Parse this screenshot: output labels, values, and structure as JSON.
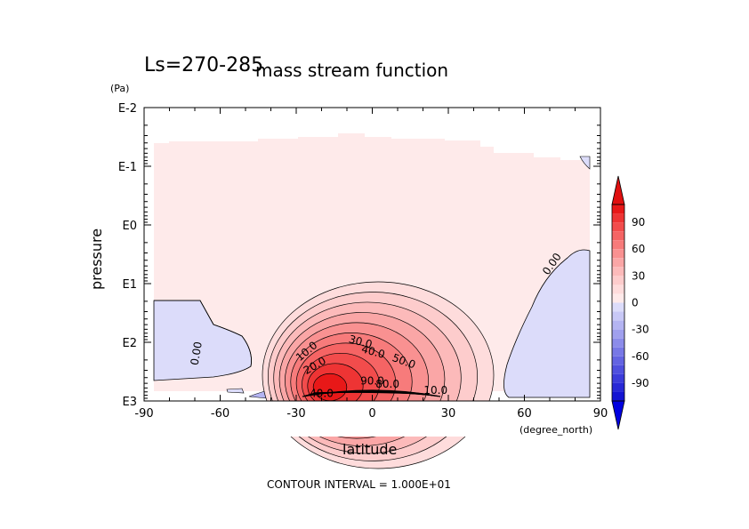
{
  "chart_data": {
    "type": "heatmap",
    "title": "mass stream function",
    "subtitle": "Ls=270-285",
    "xlabel": "latitude",
    "xunit": "(degree_north)",
    "ylabel": "pressure",
    "yunit": "(Pa)",
    "footer": "CONTOUR INTERVAL = 1.000E+01",
    "x_ticks": [
      "-90",
      "-60",
      "-30",
      "0",
      "30",
      "60",
      "90"
    ],
    "x_tick_values": [
      -90,
      -60,
      -30,
      0,
      30,
      60,
      90
    ],
    "y_ticks": [
      "E-2",
      "E-1",
      "E0",
      "E1",
      "E2",
      "E3"
    ],
    "y_tick_exponents": [
      -2,
      -1,
      0,
      1,
      2,
      3
    ],
    "xlim": [
      -90,
      90
    ],
    "ylim_log10": [
      -2,
      3
    ],
    "y_axis": "log, inverted (E3 at bottom)",
    "contour_interval": 10,
    "contour_labels": [
      {
        "text": "0.00",
        "lat": -68,
        "log10p": 2.2,
        "rotate": -80
      },
      {
        "text": "0.00",
        "lat": 72,
        "log10p": 0.7,
        "rotate": -55
      },
      {
        "text": "10.0",
        "lat": -25,
        "log10p": 2.2,
        "rotate": -40
      },
      {
        "text": "20.0",
        "lat": -22,
        "log10p": 2.45,
        "rotate": -30
      },
      {
        "text": "30.0",
        "lat": -5,
        "log10p": 2.05,
        "rotate": 15
      },
      {
        "text": "40.0",
        "lat": 0,
        "log10p": 2.22,
        "rotate": 15
      },
      {
        "text": "50.0",
        "lat": 12,
        "log10p": 2.38,
        "rotate": 20
      },
      {
        "text": "90.0",
        "lat": 0,
        "log10p": 2.72,
        "rotate": 0
      },
      {
        "text": "80.0",
        "lat": 6,
        "log10p": 2.77,
        "rotate": 0
      },
      {
        "text": "40.0",
        "lat": -20,
        "log10p": 2.93,
        "rotate": 0
      },
      {
        "text": "10.0",
        "lat": 25,
        "log10p": 2.88,
        "rotate": 0
      }
    ],
    "colorbar": {
      "ticks": [
        "90",
        "60",
        "30",
        "0",
        "-30",
        "-60",
        "-90"
      ],
      "tick_values": [
        90,
        60,
        30,
        0,
        -30,
        -60,
        -90
      ],
      "extend": "both",
      "levels": [
        {
          "from": 100,
          "to": 110,
          "color": "#e81818"
        },
        {
          "from": 90,
          "to": 100,
          "color": "#ee3434"
        },
        {
          "from": 80,
          "to": 90,
          "color": "#f24c4c"
        },
        {
          "from": 70,
          "to": 80,
          "color": "#f56464"
        },
        {
          "from": 60,
          "to": 70,
          "color": "#f77b7b"
        },
        {
          "from": 50,
          "to": 60,
          "color": "#f99191"
        },
        {
          "from": 40,
          "to": 50,
          "color": "#faa6a6"
        },
        {
          "from": 30,
          "to": 40,
          "color": "#fcbaba"
        },
        {
          "from": 20,
          "to": 30,
          "color": "#fdcccc"
        },
        {
          "from": 10,
          "to": 20,
          "color": "#fedcdc"
        },
        {
          "from": 0,
          "to": 10,
          "color": "#feeaea"
        },
        {
          "from": -10,
          "to": 0,
          "color": "#dcdcfa"
        },
        {
          "from": -20,
          "to": -10,
          "color": "#c8c8f6"
        },
        {
          "from": -30,
          "to": -20,
          "color": "#b4b4f2"
        },
        {
          "from": -40,
          "to": -30,
          "color": "#a0a0ee"
        },
        {
          "from": -50,
          "to": -40,
          "color": "#8c8cea"
        },
        {
          "from": -60,
          "to": -50,
          "color": "#7878e6"
        },
        {
          "from": -70,
          "to": -60,
          "color": "#6464e2"
        },
        {
          "from": -80,
          "to": -70,
          "color": "#5050de"
        },
        {
          "from": -90,
          "to": -80,
          "color": "#3c3cda"
        },
        {
          "from": -100,
          "to": -90,
          "color": "#2828d6"
        },
        {
          "from": -110,
          "to": -100,
          "color": "#1414d2"
        }
      ],
      "over_color": "#e01010",
      "under_color": "#0000e0"
    },
    "background_positive": "#fdeaea",
    "background_negative": "#dcdcfa"
  }
}
